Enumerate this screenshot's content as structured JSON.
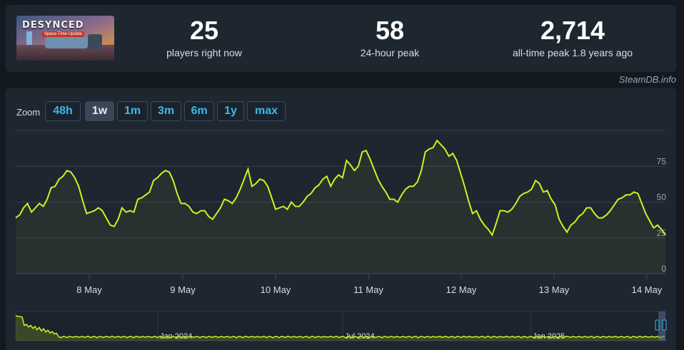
{
  "game": {
    "logo_text": "DESYNCED",
    "subtitle": "Space-Time Update"
  },
  "stats": [
    {
      "value": "25",
      "label": "players right now"
    },
    {
      "value": "58",
      "label": "24-hour peak"
    },
    {
      "value": "2,714",
      "label": "all-time peak 1.8 years ago"
    }
  ],
  "credit": "SteamDB.info",
  "zoom": {
    "label": "Zoom",
    "buttons": [
      "48h",
      "1w",
      "1m",
      "3m",
      "6m",
      "1y",
      "max"
    ],
    "active": "1w"
  },
  "colors": {
    "line": "#c8f51e",
    "active_button": "#3a4655",
    "button_text": "#3db8e8"
  },
  "chart_data": {
    "type": "line",
    "x_tick_labels": [
      "8 May",
      "9 May",
      "10 May",
      "11 May",
      "12 May",
      "13 May",
      "14 May"
    ],
    "y_ticks": [
      0,
      25,
      50,
      75
    ],
    "ylim": [
      0,
      100
    ],
    "grid": true,
    "series": [
      {
        "values": [
          39,
          41,
          46,
          49,
          43,
          46,
          49,
          47,
          52,
          60,
          61,
          66,
          68,
          72,
          71,
          67,
          61,
          51,
          42,
          43,
          44,
          46,
          44,
          39,
          34,
          33,
          38,
          46,
          43,
          44,
          43,
          52,
          53,
          55,
          57,
          65,
          67,
          70,
          72,
          71,
          65,
          56,
          49,
          49,
          47,
          43,
          42,
          44,
          44,
          40,
          38,
          42,
          46,
          52,
          51,
          49,
          53,
          59,
          66,
          73,
          61,
          63,
          66,
          65,
          61,
          53,
          45,
          46,
          47,
          45,
          50,
          47,
          47,
          50,
          54,
          56,
          60,
          62,
          66,
          68,
          61,
          66,
          69,
          67,
          79,
          76,
          72,
          75,
          85,
          86,
          80,
          73,
          66,
          61,
          57,
          52,
          52,
          50,
          55,
          59,
          61,
          61,
          64,
          72,
          85,
          87,
          88,
          93,
          90,
          87,
          82,
          84,
          79,
          70,
          61,
          51,
          42,
          44,
          38,
          34,
          31,
          27,
          35,
          44,
          44,
          43,
          45,
          49,
          54,
          56,
          57,
          59,
          65,
          63,
          57,
          58,
          52,
          48,
          38,
          33,
          29,
          34,
          36,
          40,
          42,
          46,
          46,
          42,
          39,
          39,
          41,
          44,
          48,
          52,
          53,
          55,
          55,
          57,
          56,
          49,
          42,
          37,
          32,
          34,
          31,
          27
        ]
      }
    ]
  },
  "navigator": {
    "x_tick_labels": [
      "Jan 2024",
      "Jul 2024",
      "Jan 2025"
    ]
  }
}
